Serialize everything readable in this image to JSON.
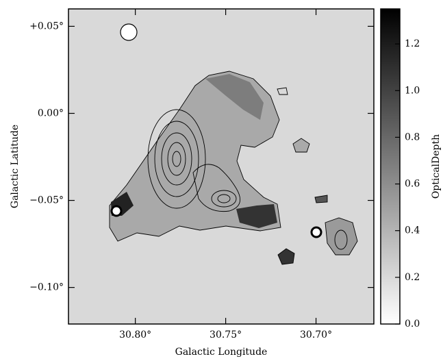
{
  "chart_data": {
    "type": "image",
    "xlabel": "Galactic Longitude",
    "ylabel": "Galactic Latitude",
    "colorbar_label": "OpticalDepth",
    "xlim": [
      30.837,
      30.668
    ],
    "xticks": [
      {
        "value": 30.8,
        "label": "30.80°"
      },
      {
        "value": 30.75,
        "label": "30.75°"
      },
      {
        "value": 30.7,
        "label": "30.70°"
      }
    ],
    "ylim": [
      -0.121,
      0.06
    ],
    "yticks": [
      {
        "value": 0.05,
        "label": "+0.05°"
      },
      {
        "value": 0.0,
        "label": "0.00°"
      },
      {
        "value": -0.05,
        "label": "−0.05°"
      },
      {
        "value": -0.1,
        "label": "−0.10°"
      }
    ],
    "clim": [
      0,
      1.35
    ],
    "cticks": [
      {
        "value": 0.0,
        "label": "0.0"
      },
      0.2,
      0.4,
      0.6,
      0.8,
      {
        "value": 1.0,
        "label": "1.0"
      },
      1.2
    ],
    "colormap": [
      "#ffffff",
      "#000000"
    ]
  }
}
